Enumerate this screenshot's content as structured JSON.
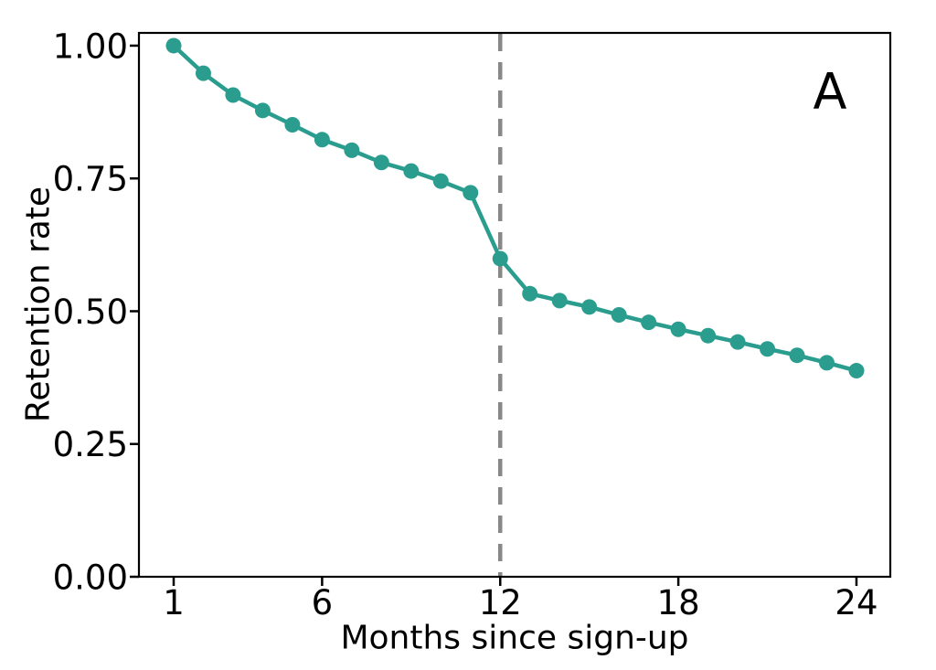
{
  "figure": {
    "background_color": "#ffffff"
  },
  "chart_data": {
    "type": "line",
    "title": "",
    "xlabel": "Months since sign-up",
    "ylabel": "Retention rate",
    "x": [
      1,
      2,
      3,
      4,
      5,
      6,
      7,
      8,
      9,
      10,
      11,
      12,
      13,
      14,
      15,
      16,
      17,
      18,
      19,
      20,
      21,
      22,
      23,
      24
    ],
    "series": [
      {
        "name": "Retention rate",
        "color": "#2a9d8f",
        "marker": "circle",
        "values": [
          1.0,
          0.948,
          0.907,
          0.878,
          0.851,
          0.823,
          0.803,
          0.78,
          0.764,
          0.745,
          0.723,
          0.599,
          0.533,
          0.52,
          0.508,
          0.493,
          0.479,
          0.466,
          0.454,
          0.442,
          0.429,
          0.417,
          0.403,
          0.388
        ]
      }
    ],
    "xlim": [
      -0.17,
      25.14
    ],
    "ylim": [
      0,
      1.024
    ],
    "xticks": {
      "values": [
        1,
        6,
        12,
        18,
        24
      ],
      "labels": [
        "1",
        "6",
        "12",
        "18",
        "24"
      ]
    },
    "yticks": {
      "values": [
        0,
        0.25,
        0.5,
        0.75,
        1.0
      ],
      "labels": [
        "0.00",
        "0.25",
        "0.50",
        "0.75",
        "1.00"
      ]
    },
    "grid": false,
    "legend_position": "none",
    "reference_line": {
      "axis": "x",
      "value": 12,
      "style": "dashed",
      "color": "#888888"
    },
    "annotations": [
      {
        "text": "A",
        "position": "top-right"
      }
    ],
    "axis_color": "#000000"
  }
}
